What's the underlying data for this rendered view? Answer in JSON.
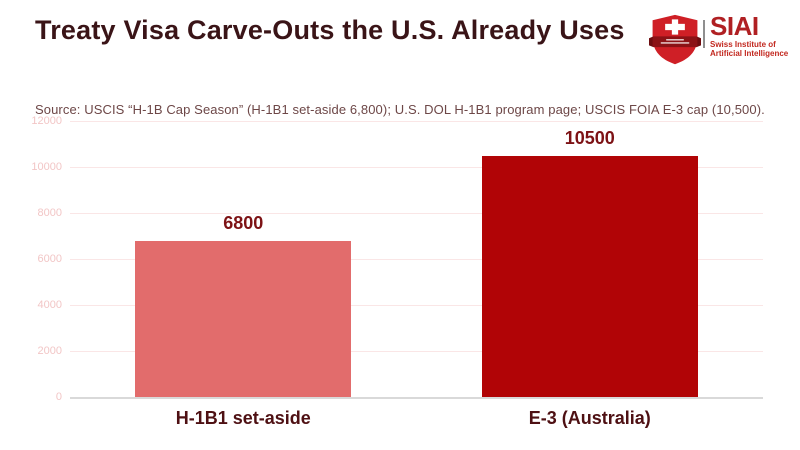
{
  "header": {
    "title": "Treaty Visa Carve-Outs the U.S. Already Uses",
    "source": "Source: USCIS “H-1B Cap Season” (H-1B1 set-aside 6,800); U.S. DOL H-1B1 program page; USCIS FOIA E-3 cap (10,500)."
  },
  "logo": {
    "wordmark": "SIAI",
    "tagline_line1": "Swiss Institute of",
    "tagline_line2": "Artificial Intelligence",
    "shield_color": "#cf1f26",
    "banner_color": "#8c1216",
    "text_color": "#b02023"
  },
  "chart_data": {
    "type": "bar",
    "title": "Treaty Visa Carve-Outs the U.S. Already Uses",
    "categories": [
      "H-1B1 set-aside",
      "E-3 (Australia)"
    ],
    "values": [
      6800,
      10500
    ],
    "value_labels": [
      "6800",
      "10500"
    ],
    "bar_colors": [
      "#e26c6c",
      "#b10406"
    ],
    "xlabel": "",
    "ylabel": "",
    "ylim": [
      0,
      12000
    ],
    "yticks": [
      0,
      2000,
      4000,
      6000,
      8000,
      10000,
      12000
    ],
    "grid": true,
    "gridline_color": "#fae6e6",
    "axis_line_color": "#d9d9d9",
    "tick_label_color": "#f2c6c6",
    "legend_position": "none"
  },
  "colors": {
    "background": "#ffffff",
    "title_text": "#3a1417",
    "source_text": "#6d4747",
    "value_label": "#7d1215",
    "category_label": "#4e1013"
  }
}
